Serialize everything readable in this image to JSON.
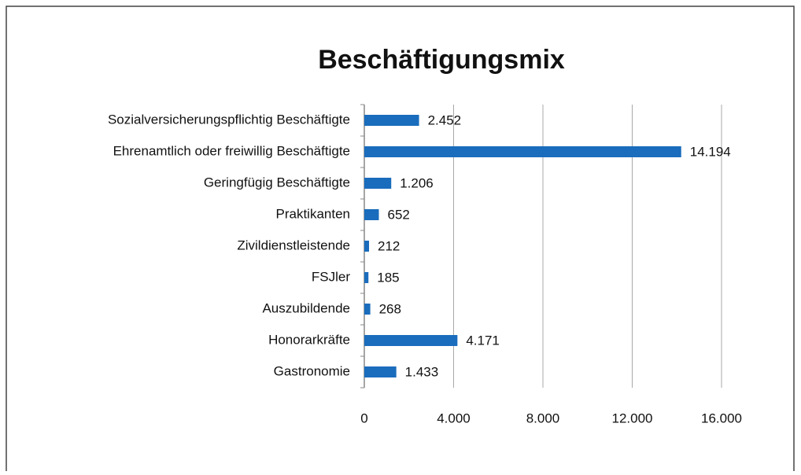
{
  "chart_data": {
    "type": "bar",
    "orientation": "horizontal",
    "title": "Beschäftigungsmix",
    "categories": [
      "Sozialversicherungspflichtig Beschäftigte",
      "Ehrenamtlich oder freiwillig Beschäftigte",
      "Geringfügig Beschäftigte",
      "Praktikanten",
      "Zivildienstleistende",
      "FSJler",
      "Auszubildende",
      "Honorarkräfte",
      "Gastronomie"
    ],
    "values": [
      2452,
      14194,
      1206,
      652,
      212,
      185,
      268,
      4171,
      1433
    ],
    "value_labels": [
      "2.452",
      "14.194",
      "1.206",
      "652",
      "212",
      "185",
      "268",
      "4.171",
      "1.433"
    ],
    "color": "#1a6cbc",
    "xlim": [
      0,
      16000
    ],
    "xticks": [
      0,
      {
        "value": 4000,
        "label": "4.000"
      },
      {
        "value": 8000,
        "label": "8.000"
      },
      {
        "value": 12000,
        "label": "12.000"
      },
      {
        "value": 16000,
        "label": "16.000"
      }
    ],
    "grid": true
  }
}
